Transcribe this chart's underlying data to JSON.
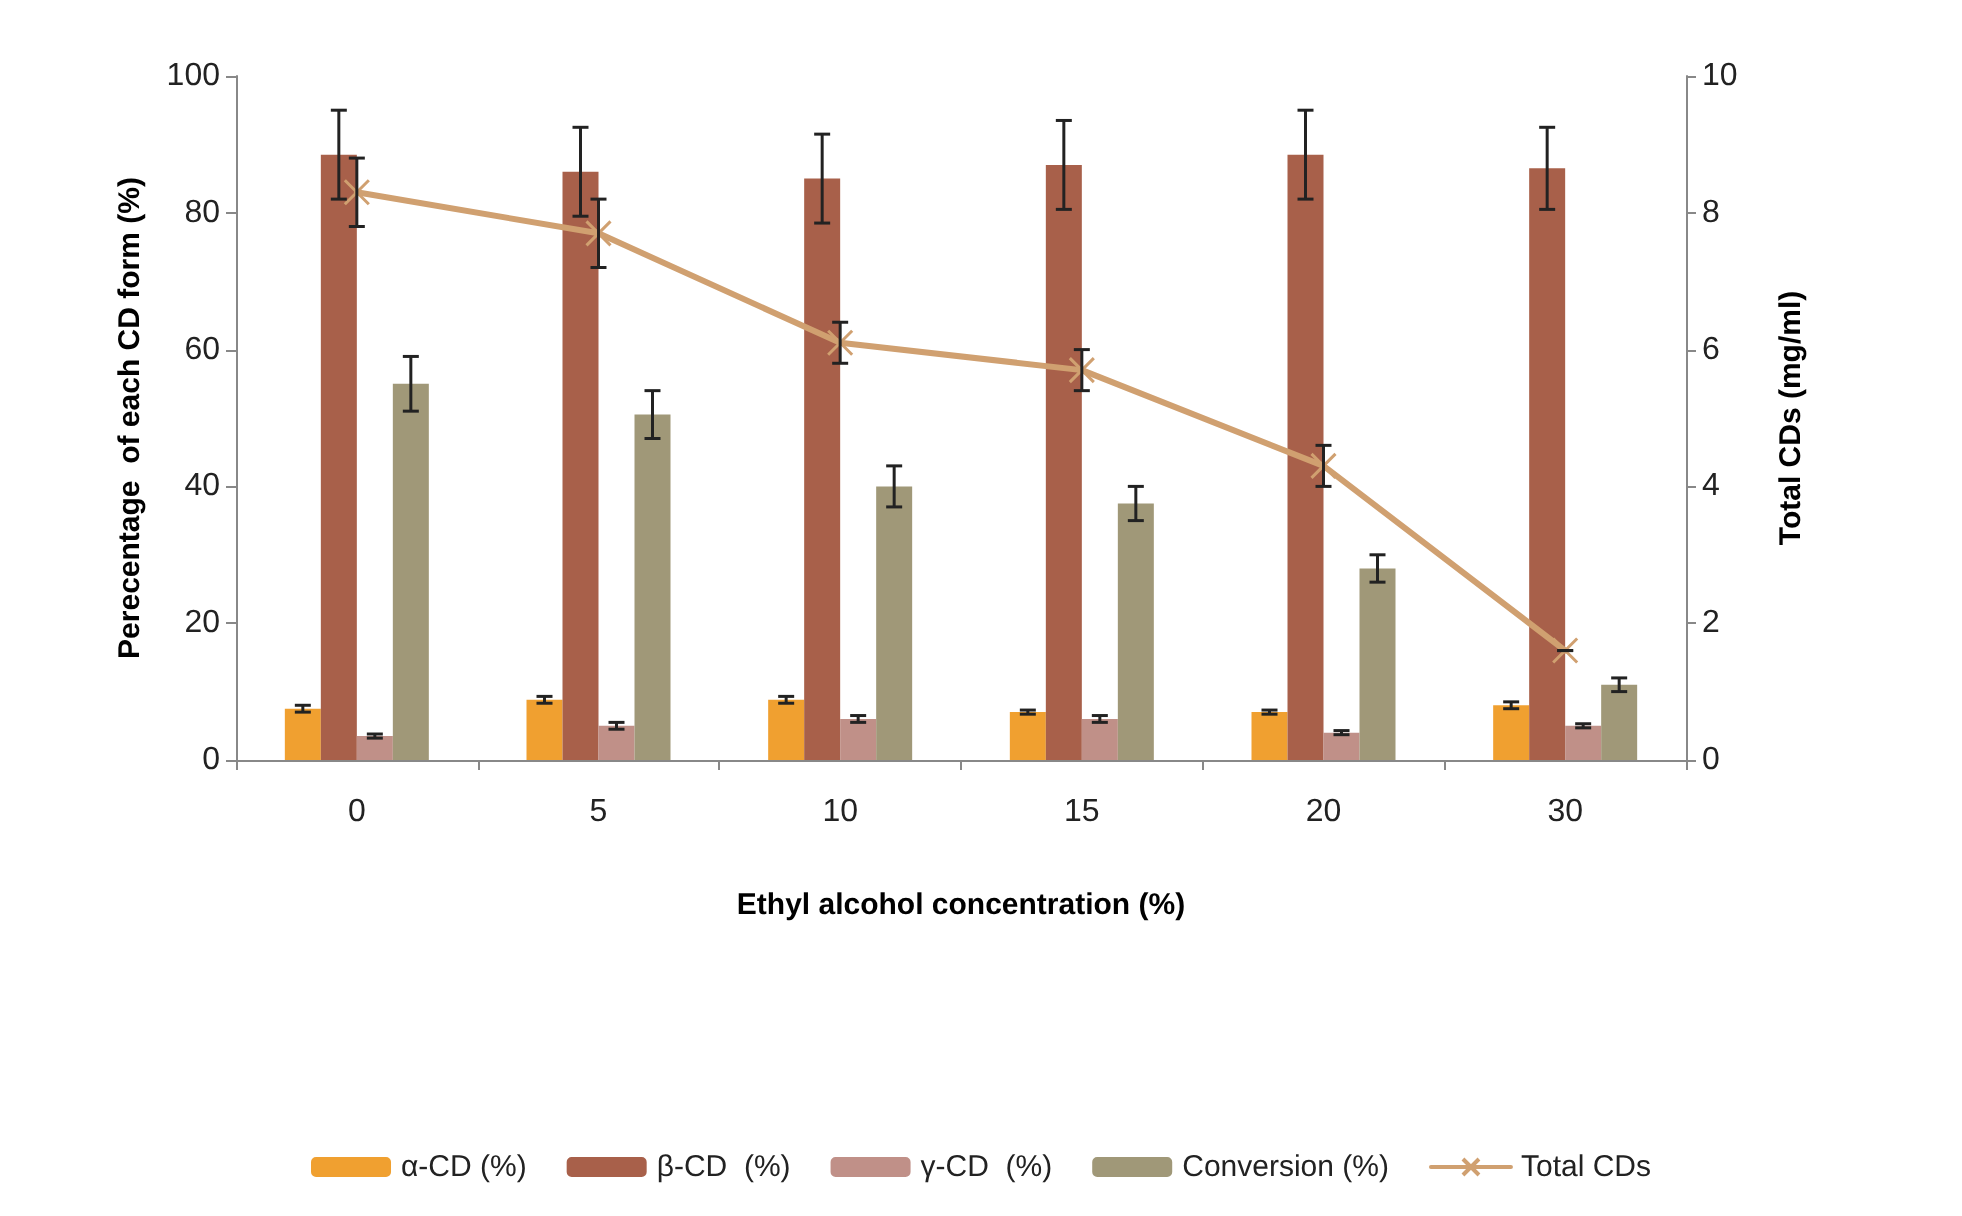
{
  "chart_data": {
    "type": "bar",
    "xlabel": "Ethyl alcohol concentration (%)",
    "ylabel": "Perecentage  of each CD form (%)",
    "y2label": "Total CDs (mg/ml)",
    "categories": [
      "0",
      "5",
      "10",
      "15",
      "20",
      "30"
    ],
    "series": [
      {
        "name": "α-CD (%)",
        "color": "#f0a030",
        "values": [
          7.5,
          8.8,
          8.8,
          7,
          7,
          8
        ],
        "errors": [
          0.5,
          0.5,
          0.5,
          0.3,
          0.3,
          0.5
        ]
      },
      {
        "name": "β-CD  (%)",
        "color": "#a8604a",
        "values": [
          88.5,
          86,
          85,
          87,
          88.5,
          86.5
        ],
        "errors": [
          6.5,
          6.5,
          6.5,
          6.5,
          6.5,
          6
        ]
      },
      {
        "name": "γ-CD  (%)",
        "color": "#c09088",
        "values": [
          3.5,
          5,
          6,
          6,
          4,
          5
        ],
        "errors": [
          0.3,
          0.5,
          0.5,
          0.5,
          0.3,
          0.3
        ]
      },
      {
        "name": "Conversion (%)",
        "color": "#a09878",
        "values": [
          55,
          50.5,
          40,
          37.5,
          28,
          11
        ],
        "errors": [
          4,
          3.5,
          3,
          2.5,
          2,
          1
        ]
      },
      {
        "name": "Total CDs",
        "type": "line",
        "axis": "y2",
        "color": "#d0a070",
        "marker": "cross",
        "values": [
          8.3,
          7.7,
          6.1,
          5.7,
          4.3,
          1.6
        ],
        "errors": [
          0.5,
          0.5,
          0.3,
          0.3,
          0.3,
          null
        ]
      }
    ],
    "ylim": [
      0,
      100
    ],
    "yticks": [
      0,
      20,
      40,
      60,
      80,
      100
    ],
    "y2lim": [
      0,
      10
    ],
    "y2ticks": [
      0,
      2,
      4,
      6,
      8,
      10
    ],
    "grid": false,
    "legend": "bottom"
  }
}
